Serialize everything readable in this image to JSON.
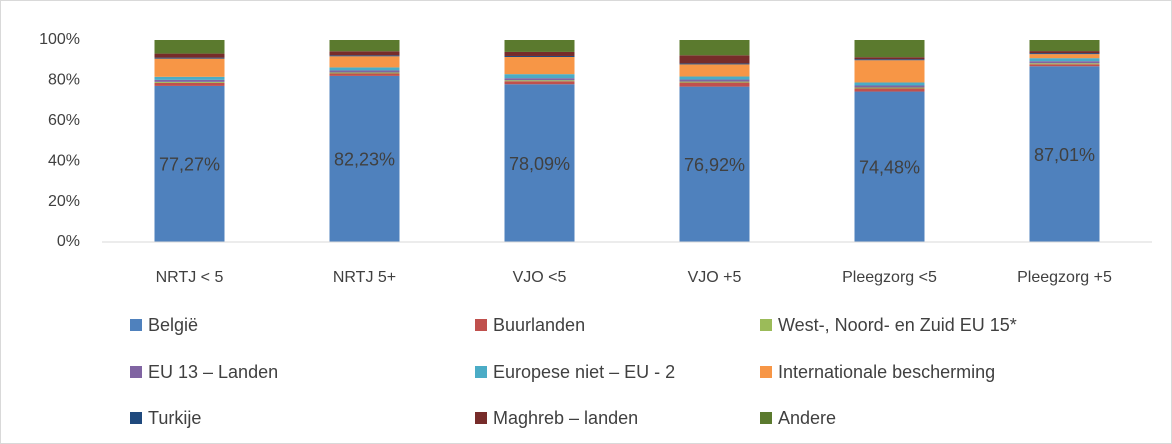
{
  "chart_data": {
    "type": "stacked_bar",
    "categories": [
      "NRTJ < 5",
      "NRTJ 5+",
      "VJO <5",
      "VJO +5",
      "Pleegzorg <5",
      "Pleegzorg +5"
    ],
    "series": [
      {
        "name": "België",
        "color": "#4f81bd",
        "values": [
          77.27,
          82.23,
          78.09,
          76.92,
          74.48,
          87.01
        ],
        "value_labels": [
          "77,27%",
          "82,23%",
          "78,09%",
          "76,92%",
          "74,48%",
          "87,01%"
        ]
      },
      {
        "name": "Buurlanden",
        "color": "#c0504d",
        "values": [
          1.5,
          1.2,
          1.5,
          2,
          1.5,
          1
        ]
      },
      {
        "name": "West-, Noord- en Zuid EU 15*",
        "color": "#9bbb59",
        "values": [
          0.5,
          0.5,
          0.5,
          0.5,
          0.5,
          0.5
        ]
      },
      {
        "name": "EU 13 – Landen",
        "color": "#8064a2",
        "values": [
          1,
          1,
          1,
          1,
          1,
          1
        ]
      },
      {
        "name": "Europese niet – EU - 2",
        "color": "#4bacc6",
        "values": [
          1.5,
          1.5,
          2,
          1.5,
          1.5,
          1.5
        ]
      },
      {
        "name": "Internationale bescherming",
        "color": "#f79646",
        "values": [
          9,
          5.5,
          8.5,
          6,
          11,
          2
        ]
      },
      {
        "name": "Turkije",
        "color": "#1f497d",
        "values": [
          0.5,
          0.5,
          0.5,
          0.5,
          0.5,
          0.5
        ]
      },
      {
        "name": "Maghreb – landen",
        "color": "#772c2a",
        "values": [
          2,
          2,
          2,
          4,
          1,
          1
        ]
      },
      {
        "name": "Andere",
        "color": "#5b7a2e",
        "values": [
          6.73,
          5.57,
          5.91,
          7.58,
          8.52,
          5.49
        ]
      }
    ],
    "ylim": [
      0,
      100
    ],
    "yticks": [
      {
        "value": 0,
        "label": "0%"
      },
      {
        "value": 20,
        "label": "20%"
      },
      {
        "value": 40,
        "label": "40%"
      },
      {
        "value": 60,
        "label": "60%"
      },
      {
        "value": 80,
        "label": "80%"
      },
      {
        "value": 100,
        "label": "100%"
      }
    ],
    "grid": false,
    "legend": "bottom"
  }
}
